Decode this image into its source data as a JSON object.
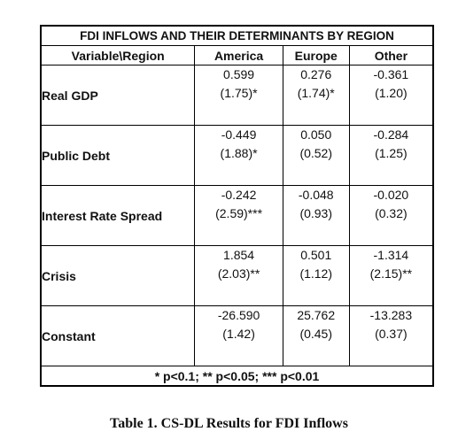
{
  "table": {
    "title": "FDI INFLOWS AND THEIR DETERMINANTS BY REGION",
    "header": [
      "Variable\\Region",
      "America",
      "Europe",
      "Other"
    ],
    "rows": [
      {
        "label": "Real GDP",
        "cells": [
          [
            "0.599",
            "(1.75)*"
          ],
          [
            "0.276",
            "(1.74)*"
          ],
          [
            "-0.361",
            "(1.20)"
          ]
        ]
      },
      {
        "label": "Public Debt",
        "cells": [
          [
            "-0.449",
            "(1.88)*"
          ],
          [
            "0.050",
            "(0.52)"
          ],
          [
            "-0.284",
            "(1.25)"
          ]
        ]
      },
      {
        "label": "Interest Rate Spread",
        "cells": [
          [
            "-0.242",
            "(2.59)***"
          ],
          [
            "-0.048",
            "(0.93)"
          ],
          [
            "-0.020",
            "(0.32)"
          ]
        ]
      },
      {
        "label": "Crisis",
        "cells": [
          [
            "1.854",
            "(2.03)**"
          ],
          [
            "0.501",
            "(1.12)"
          ],
          [
            "-1.314",
            "(2.15)**"
          ]
        ]
      },
      {
        "label": "Constant",
        "cells": [
          [
            "-26.590",
            "(1.42)"
          ],
          [
            "25.762",
            "(0.45)"
          ],
          [
            "-13.283",
            "(0.37)"
          ]
        ]
      }
    ],
    "note": "* p<0.1; ** p<0.05; *** p<0.01"
  },
  "caption": "Table 1. CS-DL Results for FDI Inflows"
}
